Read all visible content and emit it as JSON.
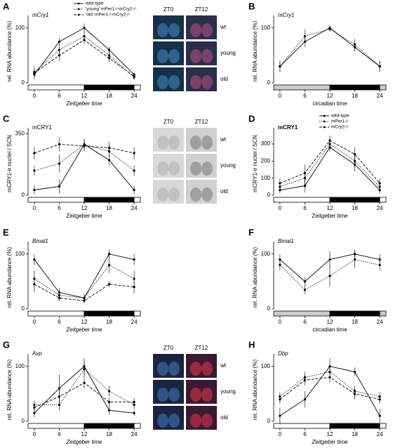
{
  "chart_data": [
    {
      "type": "line",
      "label": "A",
      "title": "mCry1",
      "y_label": "rel. RNA abundance (%)",
      "x_label": "Zeitgeber time",
      "x": [
        0,
        6,
        12,
        18,
        24
      ],
      "xlim": [
        -1.5,
        25.5
      ],
      "xticks": [
        0,
        6,
        12,
        18,
        24
      ],
      "ylim": [
        0,
        115
      ],
      "yticks": [
        0,
        100
      ],
      "legend": "upper right",
      "series": [
        {
          "name": "wild-type",
          "color": "#000000",
          "dash": "solid",
          "values": [
            15,
            75,
            100,
            60,
            15
          ],
          "errors": [
            8,
            6,
            8,
            6,
            4
          ]
        },
        {
          "name": "'young' mPer1-/-mCry2-/-",
          "color": "#000000",
          "dash": "dotted",
          "values": [
            20,
            60,
            85,
            50,
            10
          ],
          "errors": [
            10,
            10,
            8,
            8,
            4
          ]
        },
        {
          "name": "'old' mPer1-/-mCry2-/-",
          "color": "#000000",
          "dash": "dashed",
          "values": [
            18,
            50,
            78,
            45,
            12
          ],
          "errors": [
            8,
            10,
            8,
            8,
            4
          ]
        }
      ]
    },
    {
      "type": "line",
      "label": "B",
      "title": "mCry1",
      "y_label": "rel. RNA abundance (%)",
      "x_label": "circadian time",
      "x": [
        0,
        6,
        12,
        18,
        24
      ],
      "xlim": [
        -1.5,
        25.5
      ],
      "xticks": [
        0,
        6,
        12,
        18,
        24
      ],
      "ylim": [
        0,
        115
      ],
      "yticks": [
        0,
        100
      ],
      "series": [
        {
          "color": "#000000",
          "dash": "solid",
          "values": [
            30,
            75,
            100,
            65,
            30
          ],
          "errors": [
            10,
            10,
            5,
            8,
            10
          ]
        },
        {
          "color": "#000000",
          "dash": "dotted",
          "values": [
            30,
            85,
            98,
            70,
            30
          ],
          "errors": [
            10,
            12,
            5,
            10,
            10
          ]
        }
      ]
    },
    {
      "type": "line",
      "label": "C",
      "title": "mCRY1",
      "y_label": "mCRY1-ir nuclei / SCN",
      "x_label": "Zeitgeber time",
      "x": [
        0,
        6,
        12,
        18,
        24
      ],
      "xlim": [
        -1.5,
        25.5
      ],
      "xticks": [
        0,
        6,
        12,
        18,
        24
      ],
      "ylim": [
        0,
        360
      ],
      "yticks": [
        0,
        350
      ],
      "series": [
        {
          "color": "#000000",
          "dash": "solid",
          "values": [
            30,
            50,
            290,
            200,
            30
          ],
          "errors": [
            25,
            40,
            30,
            30,
            25
          ]
        },
        {
          "color": "#000000",
          "dash": "dotted",
          "values": [
            140,
            180,
            290,
            250,
            140
          ],
          "errors": [
            30,
            50,
            30,
            30,
            30
          ]
        },
        {
          "color": "#000000",
          "dash": "dashed",
          "values": [
            240,
            290,
            280,
            270,
            240
          ],
          "errors": [
            35,
            40,
            30,
            35,
            35
          ]
        }
      ]
    },
    {
      "type": "line",
      "label": "D",
      "title": "mCRY1",
      "y_label": "mCRY1-ir nuclei / SCN",
      "x_label": "Zeitgeber time",
      "x": [
        0,
        6,
        12,
        18,
        24
      ],
      "xlim": [
        -1.5,
        25.5
      ],
      "xticks": [
        0,
        6,
        12,
        18,
        24
      ],
      "ylim": [
        0,
        370
      ],
      "yticks": [
        0,
        100,
        200,
        300
      ],
      "legend": "upper right",
      "series": [
        {
          "name": "wild-type",
          "color": "#000000",
          "dash": "solid",
          "values": [
            30,
            55,
            280,
            180,
            30
          ],
          "errors": [
            20,
            40,
            25,
            40,
            20
          ]
        },
        {
          "name": "mPer1-/-",
          "color": "#000000",
          "dash": "dotted",
          "values": [
            50,
            100,
            300,
            200,
            50
          ],
          "errors": [
            25,
            40,
            30,
            40,
            25
          ]
        },
        {
          "name": "mCry2-/-",
          "color": "#000000",
          "dash": "dashed",
          "values": [
            70,
            130,
            320,
            240,
            70
          ],
          "errors": [
            30,
            50,
            30,
            40,
            30
          ]
        }
      ]
    },
    {
      "type": "line",
      "label": "E",
      "title": "Bmal1",
      "y_label": "rel. RNA abundance (%)",
      "x_label": "Zeitgeber time",
      "x": [
        0,
        6,
        12,
        18,
        24
      ],
      "xlim": [
        -1.5,
        25.5
      ],
      "xticks": [
        0,
        6,
        12,
        18,
        24
      ],
      "ylim": [
        0,
        115
      ],
      "yticks": [
        0,
        100
      ],
      "series": [
        {
          "color": "#000000",
          "dash": "solid",
          "values": [
            90,
            30,
            20,
            100,
            90
          ],
          "errors": [
            10,
            8,
            6,
            8,
            10
          ]
        },
        {
          "color": "#000000",
          "dash": "dotted",
          "values": [
            55,
            25,
            20,
            80,
            55
          ],
          "errors": [
            15,
            8,
            6,
            15,
            15
          ]
        },
        {
          "color": "#000000",
          "dash": "dashed",
          "values": [
            45,
            20,
            15,
            45,
            40
          ],
          "errors": [
            15,
            6,
            5,
            5,
            12
          ]
        }
      ]
    },
    {
      "type": "line",
      "label": "F",
      "title": "Bmal1",
      "y_label": "rel. RNA abundance (%)",
      "x_label": "circadian time",
      "x": [
        0,
        6,
        12,
        18,
        24
      ],
      "xlim": [
        -1.5,
        25.5
      ],
      "xticks": [
        0,
        6,
        12,
        18,
        24
      ],
      "ylim": [
        0,
        115
      ],
      "yticks": [
        0,
        100
      ],
      "series": [
        {
          "color": "#000000",
          "dash": "solid",
          "values": [
            90,
            50,
            90,
            100,
            90
          ],
          "errors": [
            10,
            8,
            15,
            8,
            10
          ]
        },
        {
          "color": "#000000",
          "dash": "dotted",
          "values": [
            80,
            35,
            60,
            90,
            80
          ],
          "errors": [
            10,
            8,
            20,
            15,
            10
          ]
        }
      ]
    },
    {
      "type": "line",
      "label": "G",
      "title": "Avp",
      "y_label": "rel. RNA abundance (%)",
      "x_label": "Zeitgeber time",
      "x": [
        0,
        6,
        12,
        18,
        24
      ],
      "xlim": [
        -1.5,
        25.5
      ],
      "xticks": [
        0,
        6,
        12,
        18,
        24
      ],
      "ylim": [
        0,
        115
      ],
      "yticks": [
        0,
        100
      ],
      "series": [
        {
          "color": "#000000",
          "dash": "solid",
          "values": [
            15,
            60,
            100,
            20,
            15
          ],
          "errors": [
            8,
            25,
            15,
            8,
            5
          ]
        },
        {
          "color": "#000000",
          "dash": "dotted",
          "values": [
            30,
            30,
            95,
            55,
            30
          ],
          "errors": [
            8,
            10,
            15,
            10,
            8
          ]
        },
        {
          "color": "#000000",
          "dash": "dashed",
          "values": [
            25,
            45,
            70,
            35,
            35
          ],
          "errors": [
            8,
            15,
            10,
            8,
            8
          ]
        }
      ]
    },
    {
      "type": "line",
      "label": "H",
      "title": "Dbp",
      "y_label": "rel. RNA abundance (%)",
      "x_label": "Zeitgeber time",
      "x": [
        0,
        6,
        12,
        18,
        24
      ],
      "xlim": [
        -1.5,
        25.5
      ],
      "xticks": [
        0,
        6,
        12,
        18,
        24
      ],
      "ylim": [
        0,
        115
      ],
      "yticks": [
        0,
        100
      ],
      "series": [
        {
          "color": "#000000",
          "dash": "solid",
          "values": [
            10,
            40,
            100,
            90,
            10
          ],
          "errors": [
            15,
            15,
            15,
            8,
            12
          ]
        },
        {
          "color": "#000000",
          "dash": "dotted",
          "values": [
            45,
            80,
            90,
            55,
            45
          ],
          "errors": [
            8,
            10,
            10,
            10,
            8
          ]
        },
        {
          "color": "#000000",
          "dash": "dashed",
          "values": [
            40,
            75,
            80,
            50,
            40
          ],
          "errors": [
            8,
            10,
            10,
            10,
            8
          ]
        }
      ]
    }
  ],
  "micrographs": [
    {
      "columns": [
        "ZT0",
        "ZT12"
      ],
      "rows": [
        "wt",
        "young",
        "old"
      ]
    },
    {
      "columns": [
        "ZT0",
        "ZT12"
      ],
      "rows": [
        "wt",
        "young",
        "old"
      ]
    },
    {
      "columns": [
        "ZT0",
        "ZT12"
      ],
      "rows": [
        "wt",
        "young",
        "old"
      ]
    }
  ]
}
